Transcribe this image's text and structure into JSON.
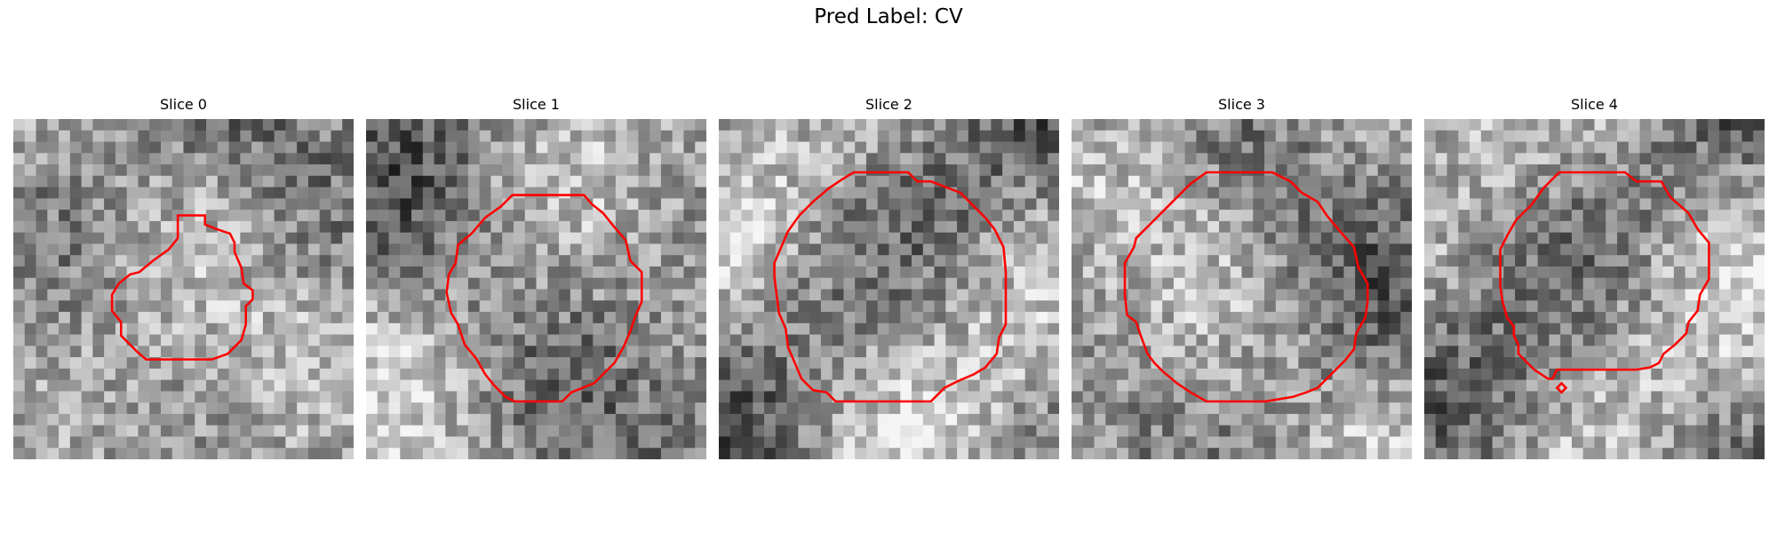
{
  "figure": {
    "title": "Pred Label: CV"
  },
  "colors": {
    "contour": "#ff0000",
    "background": "#ffffff"
  },
  "panels": [
    {
      "title": "Slice 0",
      "seed": 11
    },
    {
      "title": "Slice 1",
      "seed": 23
    },
    {
      "title": "Slice 2",
      "seed": 37
    },
    {
      "title": "Slice 3",
      "seed": 41
    },
    {
      "title": "Slice 4",
      "seed": 59
    }
  ]
}
